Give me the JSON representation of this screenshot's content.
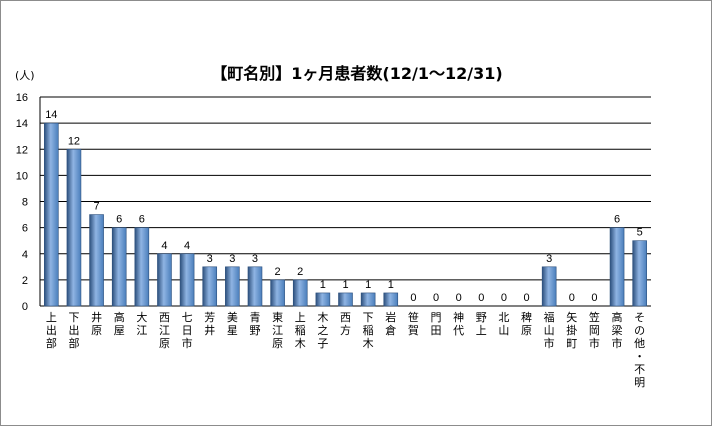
{
  "chart_data": {
    "type": "bar",
    "title": "【町名別】1ヶ月患者数(12/1～12/31)",
    "ylabel": "(人)",
    "ylim": [
      0,
      16
    ],
    "yticks": [
      0,
      2,
      4,
      6,
      8,
      10,
      12,
      14,
      16
    ],
    "grid": true,
    "legend": "none",
    "categories": [
      "上出部",
      "下出部",
      "井原",
      "高屋",
      "大江",
      "西江原",
      "七日市",
      "芳井",
      "美星",
      "青野",
      "東江原",
      "上稲木",
      "木之子",
      "西方",
      "下稲木",
      "岩倉",
      "笹賀",
      "門田",
      "神代",
      "野上",
      "北山",
      "稗原",
      "福山市",
      "矢掛町",
      "笠岡市",
      "高梁市",
      "その他・不明"
    ],
    "values": [
      14,
      12,
      7,
      6,
      6,
      4,
      4,
      3,
      3,
      3,
      2,
      2,
      1,
      1,
      1,
      1,
      0,
      0,
      0,
      0,
      0,
      0,
      3,
      0,
      0,
      6,
      5
    ],
    "colors": {
      "bar": "#4a7ebb",
      "bar_light": "#8fb4e3",
      "bar_dark": "#2c4f7c",
      "grid": "#000000"
    }
  }
}
